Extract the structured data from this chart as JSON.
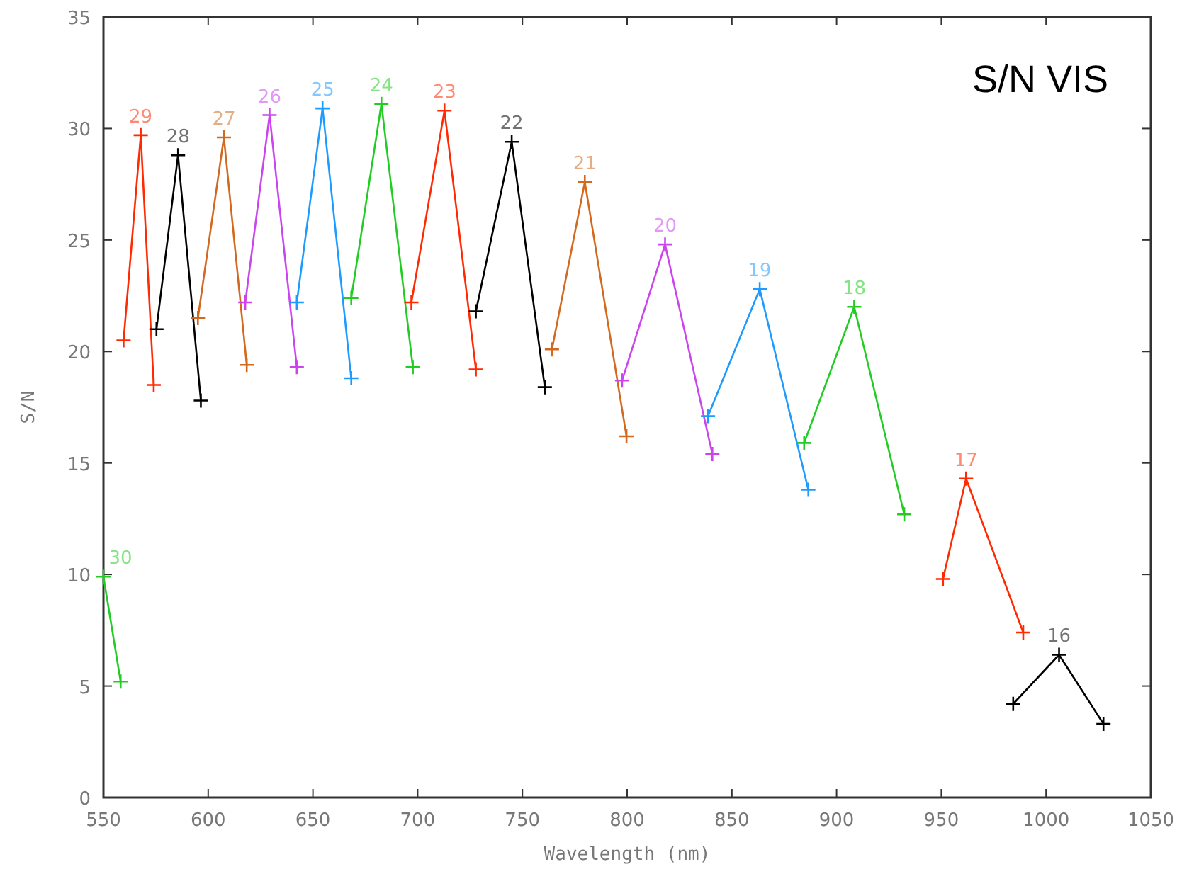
{
  "chart_data": {
    "type": "line",
    "title": "S/N VIS",
    "xlabel": "Wavelength (nm)",
    "ylabel": "S/N",
    "xlim": [
      550,
      1050
    ],
    "xticks": [
      550,
      600,
      650,
      700,
      750,
      800,
      850,
      900,
      950,
      1000,
      1050
    ],
    "ylim": [
      0,
      35
    ],
    "yticks": [
      0,
      5,
      10,
      15,
      20,
      25,
      30,
      35
    ],
    "grid": false,
    "marker": "cross",
    "line_style": "solid",
    "series": [
      {
        "name": "30",
        "color": "#22cc22",
        "x": [
          550,
          558.2
        ],
        "values": [
          9.9,
          5.2
        ]
      },
      {
        "name": "29",
        "color": "#ff2a00",
        "x": [
          559.6,
          567.8,
          574
        ],
        "values": [
          20.5,
          29.7,
          18.5
        ]
      },
      {
        "name": "28",
        "color": "#000000",
        "x": [
          575.3,
          585.6,
          596.5
        ],
        "values": [
          21.0,
          28.8,
          17.8
        ]
      },
      {
        "name": "27",
        "color": "#d2691e",
        "x": [
          595.1,
          607.5,
          618.4
        ],
        "values": [
          21.5,
          29.6,
          19.4
        ]
      },
      {
        "name": "26",
        "color": "#cc44ee",
        "x": [
          617.7,
          629.3,
          642.3
        ],
        "values": [
          22.2,
          30.6,
          19.3
        ]
      },
      {
        "name": "25",
        "color": "#1e9bff",
        "x": [
          642.3,
          654.6,
          668.3
        ],
        "values": [
          22.2,
          30.9,
          18.8
        ]
      },
      {
        "name": "24",
        "color": "#22cc22",
        "x": [
          668.3,
          682.7,
          697.7
        ],
        "values": [
          22.4,
          31.1,
          19.3
        ]
      },
      {
        "name": "23",
        "color": "#ff2a00",
        "x": [
          697,
          712.8,
          727.8
        ],
        "values": [
          22.2,
          30.8,
          19.2
        ]
      },
      {
        "name": "22",
        "color": "#000000",
        "x": [
          727.8,
          744.9,
          760.7
        ],
        "values": [
          21.8,
          29.4,
          18.4
        ]
      },
      {
        "name": "21",
        "color": "#d2691e",
        "x": [
          764.1,
          779.8,
          799.7
        ],
        "values": [
          20.1,
          27.6,
          16.2
        ]
      },
      {
        "name": "20",
        "color": "#cc44ee",
        "x": [
          797.6,
          818.1,
          840.7
        ],
        "values": [
          18.7,
          24.8,
          15.4
        ]
      },
      {
        "name": "19",
        "color": "#1e9bff",
        "x": [
          838.6,
          863.3,
          886.5
        ],
        "values": [
          17.1,
          22.8,
          13.8
        ]
      },
      {
        "name": "18",
        "color": "#22cc22",
        "x": [
          884.5,
          908.4,
          932.3
        ],
        "values": [
          15.9,
          22.0,
          12.7
        ]
      },
      {
        "name": "17",
        "color": "#ff2a00",
        "x": [
          950.8,
          961.8,
          989.1
        ],
        "values": [
          9.8,
          14.3,
          7.4
        ]
      },
      {
        "name": "16",
        "color": "#000000",
        "x": [
          984.3,
          1006.2,
          1027.4
        ],
        "values": [
          4.2,
          6.4,
          3.3
        ]
      }
    ]
  }
}
